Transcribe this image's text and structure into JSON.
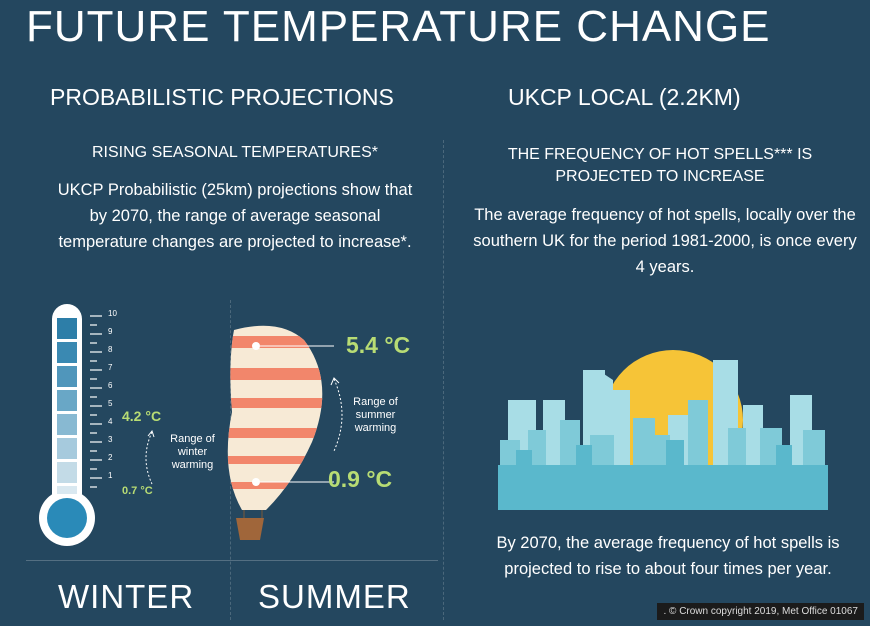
{
  "title": "FUTURE TEMPERATURE CHANGE",
  "left": {
    "heading": "PROBABILISTIC PROJECTIONS",
    "subheading": "RISING SEASONAL TEMPERATURES*",
    "body": "UKCP Probabilistic (25km) projections show that by 2070, the range of average seasonal temperature changes are projected to increase*.",
    "thermometer": {
      "scale_labels": [
        "1",
        "2",
        "3",
        "4",
        "5",
        "6",
        "7",
        "8",
        "9",
        "10"
      ],
      "winter_high": "4.2 °C",
      "winter_low": "0.7 °C",
      "winter_range_label": "Range of winter warming"
    },
    "balloon": {
      "summer_high": "5.4 °C",
      "summer_low": "0.9 °C",
      "summer_range_label": "Range of summer warming"
    },
    "winter_label": "WINTER",
    "summer_label": "SUMMER"
  },
  "right": {
    "heading": "UKCP LOCAL (2.2KM)",
    "subheading": "THE FREQUENCY OF HOT SPELLS*** IS PROJECTED TO INCREASE",
    "body": "The average frequency of hot spells, locally over the southern UK for the period 1981-2000, is once every 4 years.",
    "bottom_text": "By 2070, the average frequency of hot spells is projected to rise to about four times per year."
  },
  "copyright": ". © Crown copyright 2019, Met Office 01067",
  "colors": {
    "background": "#24475f",
    "accent_green": "#b8dc74",
    "sun": "#f6c437",
    "city_light": "#a8dde6",
    "city_dark": "#5ab8cc",
    "balloon_stripe": "#f2866b",
    "balloon_base": "#f7ead6",
    "thermo_blue": "#2a8ab8"
  }
}
